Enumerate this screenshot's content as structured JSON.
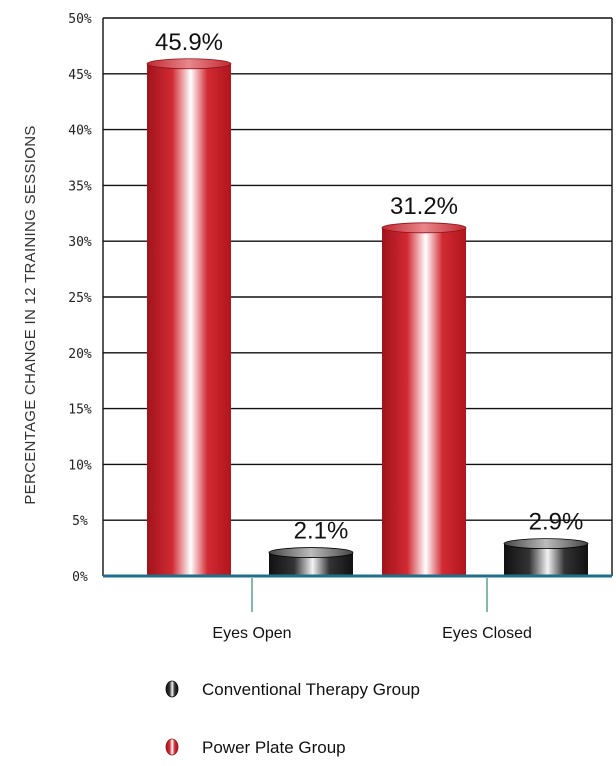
{
  "chart_data": {
    "type": "bar",
    "ylabel": "PERCENTAGE CHANGE IN 12 TRAINING SESSIONS",
    "ylim": [
      0,
      50
    ],
    "yticks": [
      "0%",
      "5%",
      "10%",
      "15%",
      "20%",
      "25%",
      "30%",
      "35%",
      "40%",
      "45%",
      "50%"
    ],
    "categories": [
      "Eyes Open",
      "Eyes Closed"
    ],
    "series": [
      {
        "name": "Power Plate Group",
        "values": [
          45.9,
          31.2
        ],
        "labels": [
          "45.9%",
          "31.2%"
        ],
        "color": "#c8202a"
      },
      {
        "name": "Conventional Therapy Group",
        "values": [
          2.1,
          2.9
        ],
        "labels": [
          "2.1%",
          "2.9%"
        ],
        "color": "#1a1a1a"
      }
    ],
    "grid": true,
    "axis_color": "#1f6f8b",
    "legend_order": [
      "Conventional Therapy Group",
      "Power Plate Group"
    ],
    "legend_placement": "bottom"
  }
}
